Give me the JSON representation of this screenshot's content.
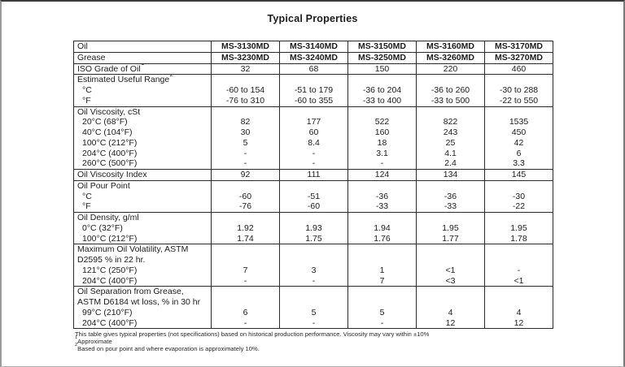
{
  "title": "Typical Properties",
  "table": {
    "sections": [
      {
        "lines": [
          {
            "label": "Oil",
            "bold_values": true,
            "values": [
              "MS-3130MD",
              "MS-3140MD",
              "MS-3150MD",
              "MS-3160MD",
              "MS-3170MD"
            ]
          }
        ]
      },
      {
        "lines": [
          {
            "label": "Grease",
            "bold_values": true,
            "values": [
              "MS-3230MD",
              "MS-3240MD",
              "MS-3250MD",
              "MS-3260MD",
              "MS-3270MD"
            ]
          }
        ]
      },
      {
        "lines": [
          {
            "label": "ISO Grade of Oil",
            "label_sup": "1",
            "values": [
              "32",
              "68",
              "150",
              "220",
              "460"
            ]
          }
        ]
      },
      {
        "lines": [
          {
            "label": "Estimated Useful Range",
            "label_sup": "2",
            "values": null
          },
          {
            "label": "°C",
            "indent": true,
            "values": [
              "-60 to 154",
              "-51 to 179",
              "-36 to 204",
              "-36 to 260",
              "-30 to 288"
            ]
          },
          {
            "label": "°F",
            "indent": true,
            "values": [
              "-76 to 310",
              "-60 to 355",
              "-33 to 400",
              "-33 to 500",
              "-22 to 550"
            ]
          }
        ]
      },
      {
        "lines": [
          {
            "label": "Oil Viscosity, cSt",
            "values": null
          },
          {
            "label": "20°C (68°F)",
            "indent": true,
            "values": [
              "82",
              "177",
              "522",
              "822",
              "1535"
            ]
          },
          {
            "label": "40°C (104°F)",
            "indent": true,
            "values": [
              "30",
              "60",
              "160",
              "243",
              "450"
            ]
          },
          {
            "label": "100°C (212°F)",
            "indent": true,
            "values": [
              "5",
              "8.4",
              "18",
              "25",
              "42"
            ]
          },
          {
            "label": "204°C (400°F)",
            "indent": true,
            "values": [
              "-",
              "-",
              "3.1",
              "4.1",
              "6"
            ]
          },
          {
            "label": "260°C (500°F)",
            "indent": true,
            "values": [
              "-",
              "-",
              "-",
              "2.4",
              "3.3"
            ]
          }
        ]
      },
      {
        "lines": [
          {
            "label": "Oil Viscosity Index",
            "values": [
              "92",
              "111",
              "124",
              "134",
              "145"
            ]
          }
        ]
      },
      {
        "lines": [
          {
            "label": "Oil Pour Point",
            "values": null
          },
          {
            "label": "°C",
            "indent": true,
            "values": [
              "-60",
              "-51",
              "-36",
              "-36",
              "-30"
            ]
          },
          {
            "label": "°F",
            "indent": true,
            "values": [
              "-76",
              "-60",
              "-33",
              "-33",
              "-22"
            ]
          }
        ]
      },
      {
        "lines": [
          {
            "label": "Oil Density, g/ml",
            "values": null
          },
          {
            "label": "0°C (32°F)",
            "indent": true,
            "values": [
              "1.92",
              "1.93",
              "1.94",
              "1.95",
              "1.95"
            ]
          },
          {
            "label": "100°C (212°F)",
            "indent": true,
            "values": [
              "1.74",
              "1.75",
              "1.76",
              "1.77",
              "1.78"
            ]
          }
        ]
      },
      {
        "lines": [
          {
            "label": "Maximum Oil Volatility, ASTM",
            "values": null
          },
          {
            "label": "D2595 % in 22 hr.",
            "values": null
          },
          {
            "label": "121°C (250°F)",
            "indent": true,
            "values": [
              "7",
              "3",
              "1",
              "<1",
              "-"
            ]
          },
          {
            "label": "204°C (400°F)",
            "indent": true,
            "values": [
              "-",
              "-",
              "7",
              "<3",
              "<1"
            ]
          }
        ]
      },
      {
        "lines": [
          {
            "label": "Oil Separation from Grease,",
            "values": null
          },
          {
            "label": "ASTM D6184 wt loss, % in 30 hr",
            "values": null
          },
          {
            "label": "99°C (210°F)",
            "indent": true,
            "values": [
              "6",
              "5",
              "5",
              "4",
              "4"
            ]
          },
          {
            "label": "204°C (400°F)",
            "indent": true,
            "values": [
              "-",
              "-",
              "-",
              "12",
              "12"
            ]
          }
        ]
      }
    ]
  },
  "footnotes": [
    {
      "sup": "",
      "text": "This table gives typical properties (not specifications) based on historical production performance. Viscosity may vary within ±10%"
    },
    {
      "sup": "1",
      "text": "Approximate"
    },
    {
      "sup": "2",
      "text": "Based on pour point and where evaporation is approximately 10%."
    }
  ]
}
